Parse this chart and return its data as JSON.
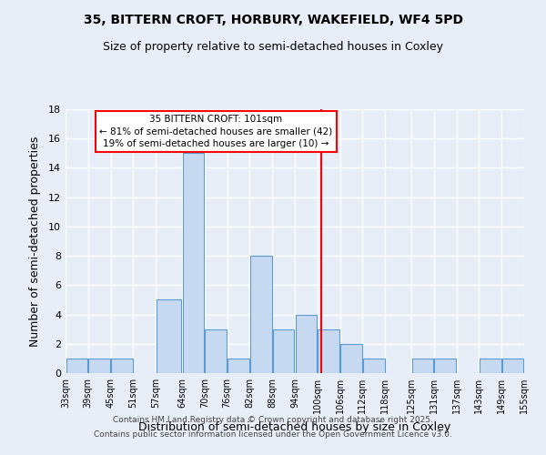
{
  "title": "35, BITTERN CROFT, HORBURY, WAKEFIELD, WF4 5PD",
  "subtitle": "Size of property relative to semi-detached houses in Coxley",
  "xlabel": "Distribution of semi-detached houses by size in Coxley",
  "ylabel": "Number of semi-detached properties",
  "bin_edges": [
    33,
    39,
    45,
    51,
    57,
    64,
    70,
    76,
    82,
    88,
    94,
    100,
    106,
    112,
    118,
    125,
    131,
    137,
    143,
    149,
    155
  ],
  "bin_labels": [
    "33sqm",
    "39sqm",
    "45sqm",
    "51sqm",
    "57sqm",
    "64sqm",
    "70sqm",
    "76sqm",
    "82sqm",
    "88sqm",
    "94sqm",
    "100sqm",
    "106sqm",
    "112sqm",
    "118sqm",
    "125sqm",
    "131sqm",
    "137sqm",
    "143sqm",
    "149sqm",
    "155sqm"
  ],
  "counts": [
    1,
    1,
    1,
    0,
    5,
    15,
    3,
    1,
    8,
    3,
    4,
    3,
    2,
    1,
    0,
    1,
    1,
    0,
    1,
    1
  ],
  "bar_color": "#c6d9f0",
  "bar_edge_color": "#5b9bd5",
  "property_line_x": 101,
  "property_line_color": "red",
  "annotation_title": "35 BITTERN CROFT: 101sqm",
  "annotation_line1": "← 81% of semi-detached houses are smaller (42)",
  "annotation_line2": "19% of semi-detached houses are larger (10) →",
  "annotation_box_color": "white",
  "annotation_box_edge_color": "red",
  "ylim": [
    0,
    18
  ],
  "yticks": [
    0,
    2,
    4,
    6,
    8,
    10,
    12,
    14,
    16,
    18
  ],
  "footer1": "Contains HM Land Registry data © Crown copyright and database right 2025.",
  "footer2": "Contains public sector information licensed under the Open Government Licence v3.0.",
  "background_color": "#e8eef8",
  "grid_color": "white"
}
